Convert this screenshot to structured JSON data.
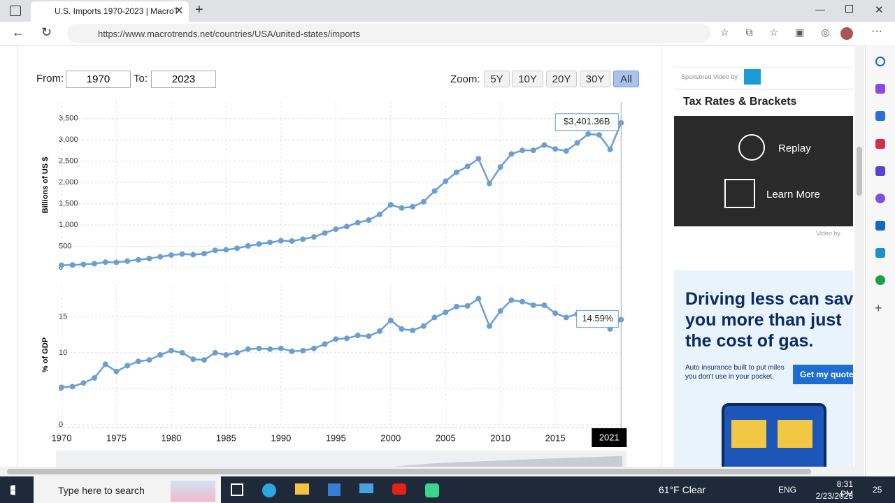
{
  "browser": {
    "tab_title": "U.S. Imports 1970-2023 | MacroT",
    "url": "https://www.macrotrends.net/countries/USA/united-states/imports"
  },
  "controls": {
    "from_label": "From:",
    "from_value": "1970",
    "to_label": "To:",
    "to_value": "2023",
    "zoom_label": "Zoom:",
    "zoom_buttons": [
      "5Y",
      "10Y",
      "20Y",
      "30Y",
      "All"
    ],
    "zoom_active": "All"
  },
  "chart_data": [
    {
      "type": "line",
      "y_label": "Billions of US $",
      "color": "#6b9fd1",
      "x": [
        1970,
        1971,
        1972,
        1973,
        1974,
        1975,
        1976,
        1977,
        1978,
        1979,
        1980,
        1981,
        1982,
        1983,
        1984,
        1985,
        1986,
        1987,
        1988,
        1989,
        1990,
        1991,
        1992,
        1993,
        1994,
        1995,
        1996,
        1997,
        1998,
        1999,
        2000,
        2001,
        2002,
        2003,
        2004,
        2005,
        2006,
        2007,
        2008,
        2009,
        2010,
        2011,
        2012,
        2013,
        2014,
        2015,
        2016,
        2017,
        2018,
        2019,
        2020,
        2021
      ],
      "values": [
        55.8,
        62.3,
        74.2,
        91.2,
        127.5,
        122.7,
        151.1,
        182.4,
        212.3,
        252.7,
        293.8,
        317.8,
        303.2,
        328.6,
        405.1,
        417.2,
        452.9,
        508.7,
        554.0,
        591.0,
        629.7,
        623.5,
        667.8,
        720.0,
        813.4,
        902.6,
        964.0,
        1055.8,
        1115.7,
        1251.4,
        1475.3,
        1398.7,
        1430.2,
        1545.1,
        1798.9,
        2027.8,
        2240.3,
        2375.7,
        2556.5,
        1976.6,
        2362.1,
        2669.8,
        2753.9,
        2755.3,
        2879.4,
        2786.5,
        2738.1,
        2928.6,
        3138.4,
        3117.0,
        2774.6,
        3401.36
      ],
      "value_labels": [
        null,
        null,
        null,
        null,
        null,
        null,
        null,
        null,
        null,
        null,
        null,
        null,
        null,
        null,
        null,
        null,
        null,
        null,
        null,
        null,
        null,
        null,
        null,
        null,
        null,
        null,
        null,
        null,
        null,
        null,
        null,
        null,
        null,
        null,
        null,
        null,
        null,
        null,
        null,
        null,
        null,
        null,
        null,
        null,
        null,
        null,
        null,
        null,
        null,
        null,
        null,
        "$3,401.36B"
      ],
      "xlim": [
        1970,
        2021.3
      ],
      "ylim": [
        0,
        3890
      ],
      "yticks": [
        0,
        500,
        {
          "value": 1000,
          "label": "1,000"
        },
        {
          "value": 1500,
          "label": "1,500"
        },
        {
          "value": 2000,
          "label": "2,000"
        },
        {
          "value": 2500,
          "label": "2,500"
        },
        {
          "value": 3000,
          "label": "3,000"
        },
        {
          "value": 3500,
          "label": "3,500"
        }
      ],
      "grid": true
    },
    {
      "type": "line",
      "y_label": "% of GDP",
      "color": "#6b9fd1",
      "x": [
        1970,
        1971,
        1972,
        1973,
        1974,
        1975,
        1976,
        1977,
        1978,
        1979,
        1980,
        1981,
        1982,
        1983,
        1984,
        1985,
        1986,
        1987,
        1988,
        1989,
        1990,
        1991,
        1992,
        1993,
        1994,
        1995,
        1996,
        1997,
        1998,
        1999,
        2000,
        2001,
        2002,
        2003,
        2004,
        2005,
        2006,
        2007,
        2008,
        2009,
        2010,
        2011,
        2012,
        2013,
        2014,
        2015,
        2016,
        2017,
        2018,
        2019,
        2020,
        2021
      ],
      "values": [
        5.2,
        5.3,
        5.8,
        6.5,
        8.4,
        7.4,
        8.2,
        8.8,
        9.0,
        9.7,
        10.3,
        10.0,
        9.1,
        9.0,
        10.0,
        9.7,
        10.0,
        10.5,
        10.6,
        10.5,
        10.6,
        10.2,
        10.3,
        10.6,
        11.2,
        11.9,
        12.0,
        12.4,
        12.3,
        13.0,
        14.5,
        13.3,
        13.1,
        13.7,
        14.9,
        15.6,
        16.4,
        16.5,
        17.5,
        13.7,
        15.8,
        17.3,
        17.1,
        16.6,
        16.6,
        15.5,
        14.9,
        15.4,
        15.2,
        14.6,
        13.3,
        14.59
      ],
      "value_labels": [
        null,
        null,
        null,
        null,
        null,
        null,
        null,
        null,
        null,
        null,
        null,
        null,
        null,
        null,
        null,
        null,
        null,
        null,
        null,
        null,
        null,
        null,
        null,
        null,
        null,
        null,
        null,
        null,
        null,
        null,
        null,
        null,
        null,
        null,
        null,
        null,
        null,
        null,
        null,
        null,
        null,
        null,
        null,
        null,
        null,
        null,
        null,
        null,
        null,
        null,
        null,
        "14.59%"
      ],
      "xlim": [
        1970,
        2021.3
      ],
      "ylim": [
        0,
        19.4
      ],
      "xticks": [
        1970,
        1975,
        1980,
        1985,
        1990,
        1995,
        2000,
        2005,
        2010,
        2015
      ],
      "yticks": [
        0,
        5,
        10,
        15
      ],
      "highlight_x": 2021,
      "grid": true
    }
  ],
  "ads": {
    "sponsor_label": "Sponsored Video by:",
    "video_title": "Tax Rates & Brackets",
    "replay": "Replay",
    "learn_more": "Learn More",
    "video_by": "Video by",
    "headline": [
      "Driving less can save",
      "you more than just",
      "the cost of gas."
    ],
    "body": [
      "Auto insurance built to put miles",
      "you don't use in your pocket."
    ],
    "cta": "Get my quote"
  },
  "taskbar": {
    "search": "Type here to search",
    "weather": "61°F  Clear",
    "lang": "ENG",
    "time": "8:31 PM",
    "date": "2/23/2023",
    "notifications": "25"
  }
}
